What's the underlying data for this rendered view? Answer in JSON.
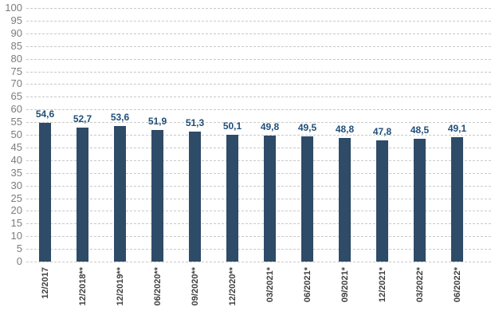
{
  "chart_data": {
    "type": "bar",
    "title": "",
    "xlabel": "",
    "ylabel": "",
    "categories": [
      "12/2017",
      "12/2018**",
      "12/2019**",
      "06/2020**",
      "09/2020**",
      "12/2020**",
      "03/2021*",
      "06/2021*",
      "09/2021*",
      "12/2021*",
      "03/2022*",
      "06/2022*"
    ],
    "values": [
      54.6,
      52.7,
      53.6,
      51.9,
      51.3,
      50.1,
      49.8,
      49.5,
      48.8,
      47.8,
      48.5,
      49.1
    ],
    "value_labels": [
      "54,6",
      "52,7",
      "53,6",
      "51,9",
      "51,3",
      "50,1",
      "49,8",
      "49,5",
      "48,8",
      "47,8",
      "48,5",
      "49,1"
    ],
    "ylim": [
      0,
      100
    ],
    "ytick_step": 5,
    "grid": "horizontal-dashed",
    "legend": "none",
    "decimal_separator": ",",
    "colors": {
      "bar": "#2E4B68",
      "value_label": "#1F4E79",
      "axis_tick_label": "#7C7C7C",
      "category_label": "#404040",
      "gridline": "#C9C9C9",
      "background": "#FFFFFF"
    }
  }
}
